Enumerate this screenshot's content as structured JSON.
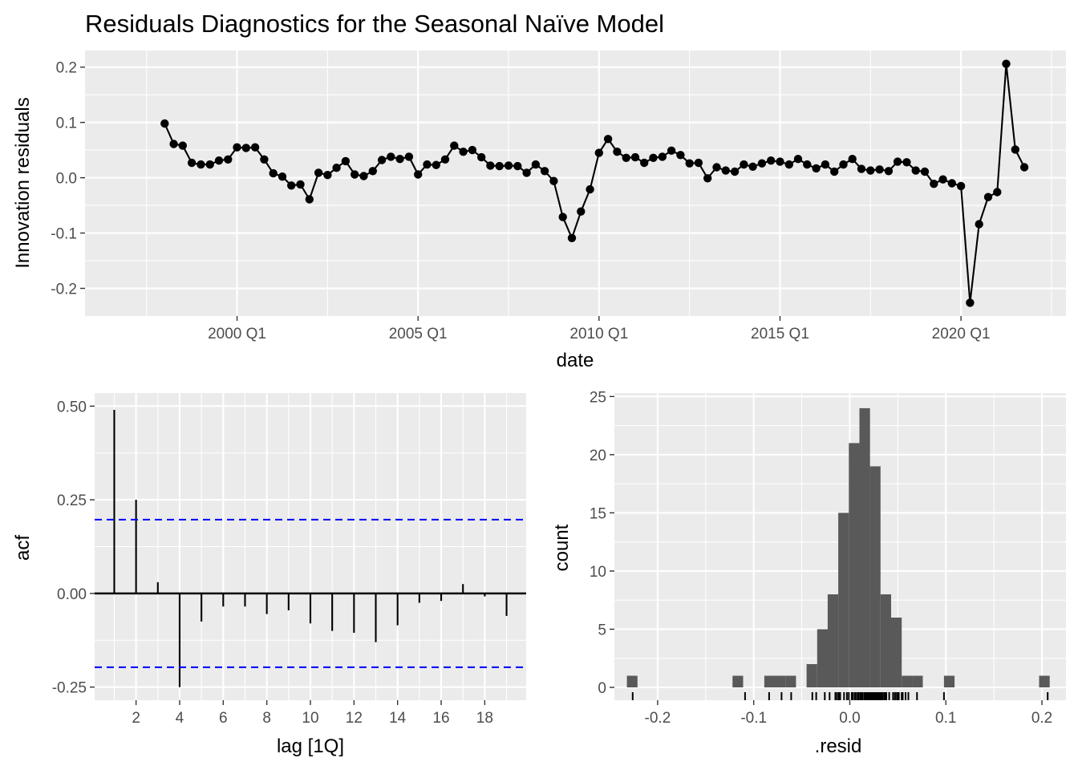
{
  "title": "Residuals Diagnostics for the Seasonal Naïve Model",
  "colors": {
    "panel_bg": "#EBEBEB",
    "grid": "#FFFFFF",
    "line": "#000000",
    "bar_fill": "#595959",
    "ci_line": "#0000FF",
    "tick_text": "#4D4D4D"
  },
  "chart_data": [
    {
      "type": "line",
      "panel": "residuals",
      "xlabel": "date",
      "ylabel": "Innovation residuals",
      "x_tick_labels": [
        "2000 Q1",
        "2005 Q1",
        "2010 Q1",
        "2015 Q1",
        "2020 Q1"
      ],
      "x_tick_years": [
        2000,
        2005,
        2010,
        2015,
        2020
      ],
      "y_tick_labels": [
        "0.2",
        "0.1",
        "0.0",
        "-0.1",
        "-0.2"
      ],
      "y_ticks": [
        0.2,
        0.1,
        0.0,
        -0.1,
        -0.2
      ],
      "xlim": [
        1995.8,
        2022.9
      ],
      "ylim": [
        -0.25,
        0.23
      ],
      "x_start": "1998 Q1",
      "x_step": "1 quarter",
      "values": [
        0.098,
        0.061,
        0.058,
        0.027,
        0.024,
        0.024,
        0.031,
        0.033,
        0.055,
        0.054,
        0.055,
        0.033,
        0.008,
        0.002,
        -0.014,
        -0.012,
        -0.039,
        0.009,
        0.005,
        0.018,
        0.03,
        0.006,
        0.003,
        0.012,
        0.032,
        0.038,
        0.034,
        0.038,
        0.006,
        0.024,
        0.023,
        0.033,
        0.058,
        0.047,
        0.05,
        0.037,
        0.022,
        0.021,
        0.022,
        0.021,
        0.009,
        0.024,
        0.012,
        -0.006,
        -0.071,
        -0.109,
        -0.061,
        -0.021,
        0.045,
        0.07,
        0.047,
        0.036,
        0.037,
        0.027,
        0.036,
        0.038,
        0.049,
        0.041,
        0.026,
        0.027,
        -0.001,
        0.019,
        0.013,
        0.011,
        0.024,
        0.02,
        0.026,
        0.031,
        0.029,
        0.024,
        0.034,
        0.024,
        0.017,
        0.024,
        0.011,
        0.024,
        0.034,
        0.016,
        0.013,
        0.015,
        0.012,
        0.029,
        0.028,
        0.013,
        0.011,
        -0.011,
        -0.003,
        -0.01,
        -0.015,
        -0.226,
        -0.084,
        -0.035,
        -0.026,
        0.206,
        0.051,
        0.019
      ]
    },
    {
      "type": "bar",
      "panel": "acf",
      "xlabel": "lag [1Q]",
      "ylabel": "acf",
      "x_tick_labels": [
        "2",
        "4",
        "6",
        "8",
        "10",
        "12",
        "14",
        "16",
        "18"
      ],
      "x_ticks": [
        2,
        4,
        6,
        8,
        10,
        12,
        14,
        16,
        18
      ],
      "y_tick_labels": [
        "0.50",
        "0.25",
        "0.00",
        "-0.25"
      ],
      "y_ticks": [
        0.5,
        0.25,
        0.0,
        -0.25
      ],
      "xlim": [
        0.1,
        19.9
      ],
      "ylim": [
        -0.285,
        0.535
      ],
      "lags": [
        1,
        2,
        3,
        4,
        5,
        6,
        7,
        8,
        9,
        10,
        11,
        12,
        13,
        14,
        15,
        16,
        17,
        18,
        19
      ],
      "values": [
        0.49,
        0.25,
        0.03,
        -0.25,
        -0.075,
        -0.035,
        -0.035,
        -0.055,
        -0.045,
        -0.08,
        -0.1,
        -0.105,
        -0.13,
        -0.085,
        -0.025,
        -0.02,
        0.025,
        -0.008,
        -0.06
      ],
      "ci": [
        0.197,
        -0.197
      ]
    },
    {
      "type": "bar",
      "panel": "histogram",
      "xlabel": ".resid",
      "ylabel": "count",
      "x_tick_labels": [
        "-0.2",
        "-0.1",
        "0.0",
        "0.1",
        "0.2"
      ],
      "x_ticks": [
        -0.2,
        -0.1,
        0.0,
        0.1,
        0.2
      ],
      "y_tick_labels": [
        "25",
        "20",
        "15",
        "10",
        "5",
        "0"
      ],
      "y_ticks": [
        25,
        20,
        15,
        10,
        5,
        0
      ],
      "xlim": [
        -0.245,
        0.225
      ],
      "ylim": [
        0,
        25.3
      ],
      "bin_width": 0.011,
      "bin_starts": [
        -0.232,
        -0.122,
        -0.089,
        -0.078,
        -0.067,
        -0.045,
        -0.034,
        -0.023,
        -0.012,
        -0.001,
        0.01,
        0.021,
        0.032,
        0.043,
        0.054,
        0.065,
        0.098,
        0.197
      ],
      "counts": [
        1,
        1,
        1,
        1,
        1,
        2,
        5,
        8,
        15,
        21,
        24,
        19,
        8,
        6,
        1,
        1,
        1,
        1
      ]
    }
  ]
}
